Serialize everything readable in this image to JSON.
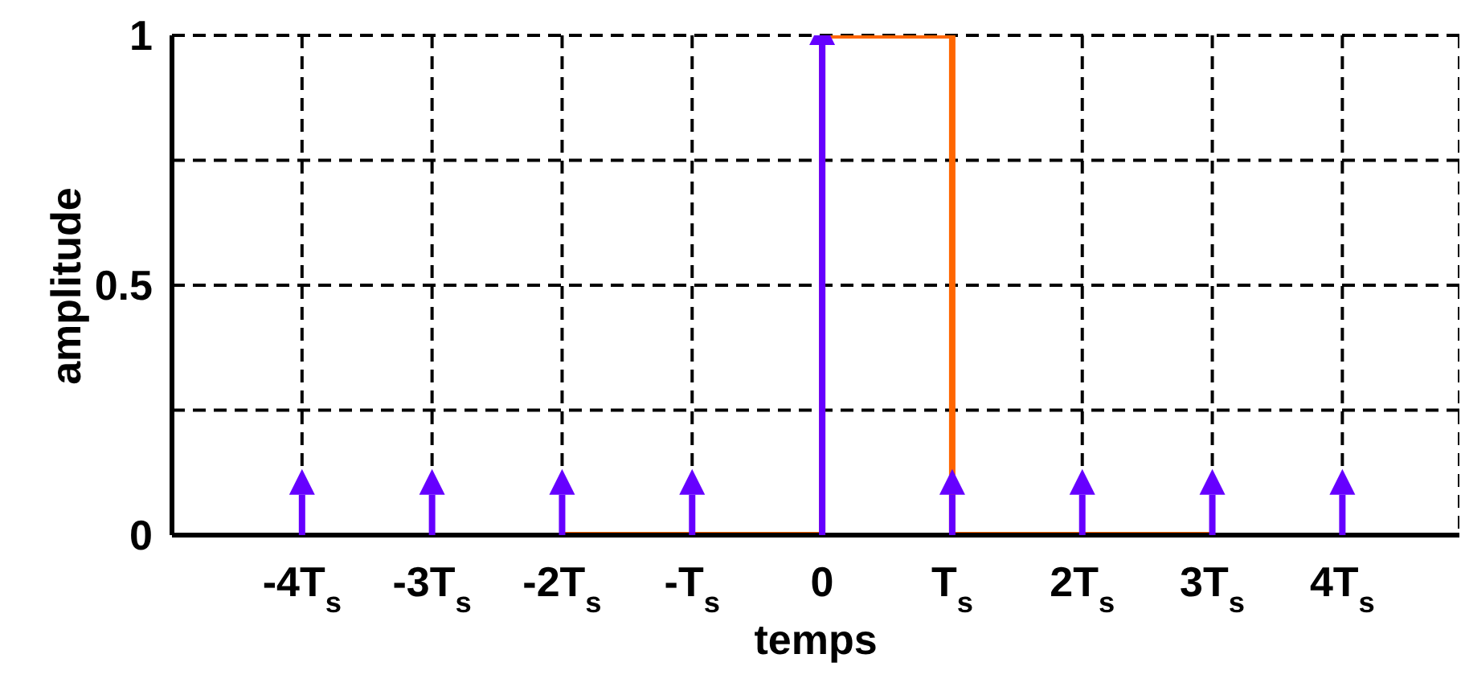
{
  "chart_data": {
    "type": "line",
    "xlabel": "temps",
    "ylabel": "amplitude",
    "xlim": [
      -5,
      4.9
    ],
    "ylim": [
      0,
      1
    ],
    "xticks": [
      {
        "value": -4,
        "label": "-4T$_{s}$"
      },
      {
        "value": -3,
        "label": "-3T$_{s}$"
      },
      {
        "value": -2,
        "label": "-2T$_{s}$"
      },
      {
        "value": -1,
        "label": "-T$_{s}$"
      },
      0,
      {
        "value": 1,
        "label": "T$_{s}$"
      },
      {
        "value": 2,
        "label": "2T$_{s}$"
      },
      {
        "value": 3,
        "label": "3T$_{s}$"
      },
      {
        "value": 4,
        "label": "4T$_{s}$"
      }
    ],
    "yticks": [
      0,
      {
        "value": 0.25,
        "label": null
      },
      0.5,
      {
        "value": 0.75,
        "label": null
      },
      1
    ],
    "grid": true,
    "series": [
      {
        "type": "lollipop",
        "color": "#6600ff",
        "marker": "triangle",
        "x": [
          -4,
          -3,
          -2,
          -1,
          0,
          1,
          2,
          3,
          4
        ],
        "values": [
          0.1,
          0.1,
          0.1,
          0.1,
          1,
          0.1,
          0.1,
          0.1,
          0.1
        ]
      },
      {
        "color": "#ff6600",
        "marker": "none",
        "x": [
          -2,
          0,
          0,
          1,
          1,
          3
        ],
        "values": [
          0,
          0,
          1,
          1,
          0,
          0
        ]
      }
    ]
  }
}
